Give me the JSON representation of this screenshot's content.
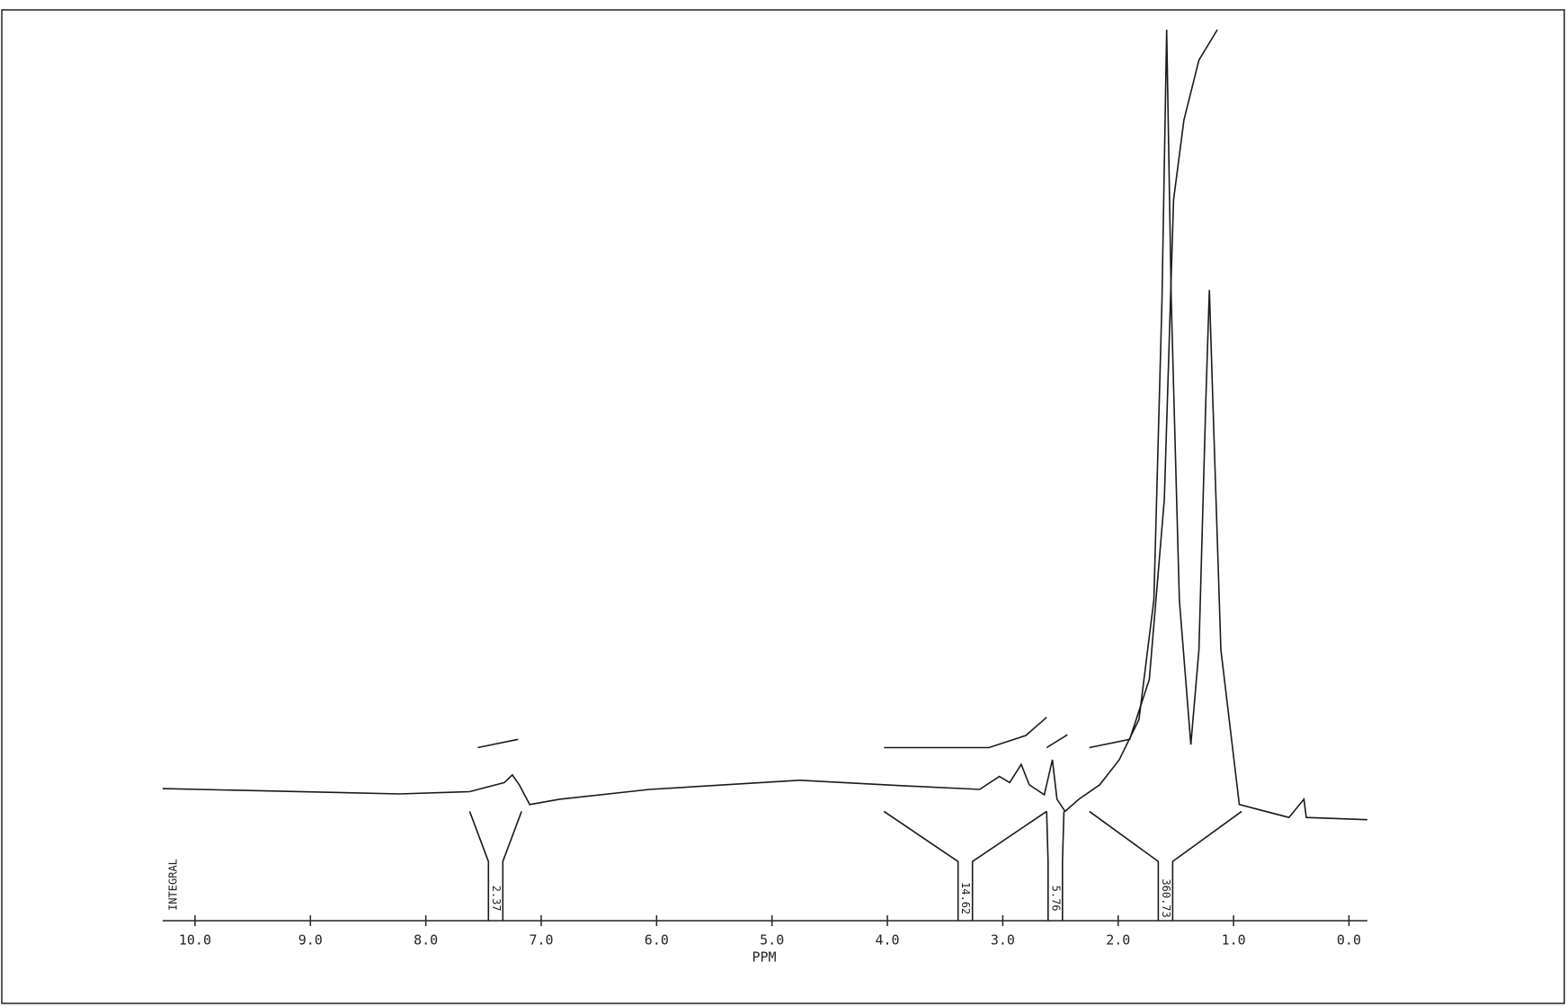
{
  "chart_data": {
    "type": "line",
    "x_label": "PPM",
    "y_label": "INTEGRAL",
    "xlim": [
      10.28,
      -0.16
    ],
    "ylim": [
      -17.4,
      100
    ],
    "xticks": [
      {
        "value": 10,
        "label": "10.0"
      },
      {
        "value": 9,
        "label": "9.0"
      },
      {
        "value": 8,
        "label": "8.0"
      },
      {
        "value": 7,
        "label": "7.0"
      },
      {
        "value": 6,
        "label": "6.0"
      },
      {
        "value": 5,
        "label": "5.0"
      },
      {
        "value": 4,
        "label": "4.0"
      },
      {
        "value": 3,
        "label": "3.0"
      },
      {
        "value": 2,
        "label": "2.0"
      },
      {
        "value": 1,
        "label": "1.0"
      },
      {
        "value": 0,
        "label": "0.0"
      }
    ],
    "color": "#1a1a1a",
    "series": [
      {
        "x": [
          10.28,
          8.23,
          7.62,
          7.32,
          7.25,
          7.19,
          7.1,
          6.84,
          6.06,
          4.76,
          3.9,
          3.2,
          3.03,
          2.94,
          2.84,
          2.77,
          2.64,
          2.57,
          2.53,
          2.46,
          2.34,
          2.16,
          1.99,
          1.82,
          1.69,
          1.62,
          1.58,
          1.54,
          1.47,
          1.37,
          1.3,
          1.24,
          1.21,
          1.18,
          1.11,
          0.95,
          0.52,
          0.39,
          0.37,
          -0.16
        ],
        "values": [
          0,
          -0.7,
          -0.4,
          0.8,
          1.8,
          0.5,
          -2.1,
          -1.4,
          -0.1,
          1.1,
          0.4,
          -0.1,
          1.6,
          0.8,
          3.2,
          0.5,
          -0.8,
          3.8,
          -1.4,
          -3.0,
          -1.4,
          0.5,
          3.8,
          9.1,
          24.9,
          64.4,
          100,
          64.4,
          24.9,
          5.8,
          18.3,
          51.3,
          65.7,
          51.3,
          18.3,
          -2.1,
          -3.8,
          -1.4,
          -3.8,
          -4.1
        ]
      },
      {
        "x": [
          7.55,
          7.2,
          null,
          4.03,
          3.12,
          2.8,
          2.62,
          null,
          2.62,
          2.44,
          null,
          2.25,
          1.9,
          1.73,
          1.6,
          1.52,
          1.43,
          1.3,
          1.14
        ],
        "values": [
          5.4,
          6.5,
          null,
          5.4,
          5.4,
          7.0,
          9.4,
          null,
          5.4,
          7.1,
          null,
          5.4,
          6.5,
          14.4,
          38.1,
          77.6,
          88.1,
          96.0,
          100
        ]
      }
    ],
    "integrals": [
      {
        "range": [
          7.62,
          7.17
        ],
        "label": "2.37"
      },
      {
        "range": [
          4.03,
          2.62
        ],
        "label": "14.62"
      },
      {
        "range": [
          2.62,
          2.47
        ],
        "label": "5.76"
      },
      {
        "range": [
          2.25,
          0.93
        ],
        "label": "360.73"
      }
    ]
  }
}
